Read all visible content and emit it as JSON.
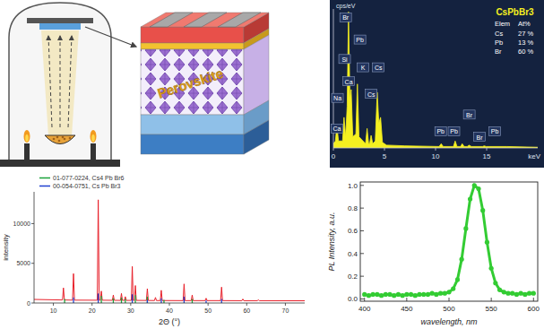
{
  "schematic": {
    "layer_label": "Perovskite"
  },
  "chart_data": [
    {
      "type": "area",
      "x_label": "keV",
      "y_label": "cps/eV",
      "x": [
        0,
        0.2,
        0.34,
        0.5,
        0.9,
        1.04,
        1.2,
        1.35,
        1.48,
        1.62,
        1.74,
        1.9,
        2.2,
        2.35,
        2.5,
        3.15,
        3.3,
        3.45,
        3.55,
        3.69,
        3.85,
        4.1,
        4.29,
        4.45,
        4.62,
        4.8,
        5.2,
        7,
        10.35,
        10.55,
        10.75,
        11.75,
        11.92,
        12.1,
        12.45,
        12.61,
        12.8,
        13.1,
        13.29,
        13.5,
        14.6,
        14.76,
        14.95,
        17,
        20
      ],
      "values": [
        3,
        5,
        16,
        5,
        5,
        22,
        8,
        30,
        98,
        35,
        42,
        8,
        10,
        46,
        8,
        3,
        14,
        3,
        3,
        9,
        3,
        5,
        40,
        18,
        22,
        4,
        2,
        1.5,
        1,
        3,
        1,
        1,
        5,
        1,
        1,
        3,
        1,
        1,
        2,
        1,
        1,
        1.5,
        1,
        1,
        0.5
      ],
      "color": "#f5f020",
      "xlim": [
        0,
        20
      ],
      "ylim": [
        0,
        100
      ],
      "xticks": [
        0,
        5,
        10,
        15
      ],
      "tick_labels": "x",
      "annotations": [
        {
          "text": "Br",
          "x": 1.2,
          "y": 94
        },
        {
          "text": "Pb",
          "x": 2.6,
          "y": 78
        },
        {
          "text": "Si",
          "x": 1.1,
          "y": 64
        },
        {
          "text": "K",
          "x": 2.9,
          "y": 58
        },
        {
          "text": "Cs",
          "x": 4.4,
          "y": 58
        },
        {
          "text": "Ca",
          "x": 1.5,
          "y": 48
        },
        {
          "text": "Na",
          "x": 0.4,
          "y": 36
        },
        {
          "text": "Cs",
          "x": 3.7,
          "y": 39
        },
        {
          "text": "Ca",
          "x": 0.35,
          "y": 14
        },
        {
          "text": "Pb",
          "x": 10.5,
          "y": 12
        },
        {
          "text": "Pb",
          "x": 11.8,
          "y": 12
        },
        {
          "text": "Br",
          "x": 13.3,
          "y": 24
        },
        {
          "text": "Br",
          "x": 14.3,
          "y": 8
        },
        {
          "text": "Pb",
          "x": 15.8,
          "y": 12
        }
      ],
      "inset": {
        "title": "CsPbBr3",
        "header": [
          "Elem",
          "At%"
        ],
        "rows": [
          [
            "Cs",
            "27 %"
          ],
          [
            "Pb",
            "13 %"
          ],
          [
            "Br",
            "60 %"
          ]
        ]
      }
    },
    {
      "type": "line",
      "x_label": "2Θ (°)",
      "y_label": "intensity",
      "series": [
        {
          "color": "#e8202a",
          "x": [
            5,
            12.35,
            12.6,
            12.85,
            14.95,
            15.2,
            15.45,
            21.35,
            21.6,
            21.85,
            22.15,
            22.4,
            22.65,
            25.25,
            25.5,
            25.75,
            27.35,
            27.6,
            27.85,
            28.35,
            28.6,
            28.85,
            30.15,
            30.4,
            30.65,
            30.95,
            31.2,
            31.45,
            34.05,
            34.3,
            34.55,
            36.15,
            36.4,
            36.65,
            37.65,
            37.9,
            38.15,
            43.55,
            43.8,
            44.05,
            45.65,
            45.9,
            46.15,
            49.25,
            49.5,
            49.75,
            53.25,
            53.5,
            53.75,
            58.75,
            59.0,
            59.25,
            62.75,
            63.0,
            63.25,
            75
          ],
          "values": [
            450,
            380,
            1900,
            380,
            360,
            3700,
            360,
            350,
            13000,
            350,
            350,
            1500,
            350,
            340,
            1000,
            340,
            330,
            1200,
            330,
            330,
            800,
            330,
            330,
            4600,
            330,
            330,
            2200,
            330,
            320,
            1800,
            320,
            310,
            700,
            310,
            310,
            1600,
            310,
            300,
            2400,
            300,
            300,
            1000,
            300,
            300,
            600,
            300,
            300,
            2000,
            300,
            290,
            500,
            290,
            290,
            400,
            290,
            280
          ]
        },
        {
          "name": "01-077-0224, Cs4 Pb Br6",
          "type": "stem",
          "color": "#1aa33a",
          "x": [
            12.9,
            22.4,
            25.5,
            27.6,
            28.6,
            31.2,
            34.3,
            38.6,
            45.9
          ],
          "values": [
            500,
            900,
            600,
            700,
            500,
            1000,
            800,
            400,
            500
          ]
        },
        {
          "name": "00-054-0751, Cs Pb Br3",
          "type": "stem",
          "color": "#2040d0",
          "x": [
            15.2,
            21.6,
            30.4,
            34.3,
            37.9,
            43.8,
            49.5,
            53.5
          ],
          "values": [
            700,
            1200,
            1100,
            400,
            600,
            800,
            300,
            500
          ]
        }
      ],
      "xlim": [
        5,
        75
      ],
      "ylim": [
        0,
        14000
      ],
      "xticks": [
        10,
        20,
        30,
        40,
        50,
        60,
        70
      ],
      "yticks": [
        0,
        5000,
        10000
      ],
      "legend": "upper left"
    },
    {
      "type": "scatter",
      "x_label": "wavelength, nm",
      "y_label": "PL Intensity, a.u.",
      "x": [
        400,
        405,
        410,
        415,
        420,
        425,
        430,
        435,
        440,
        445,
        450,
        455,
        460,
        465,
        470,
        475,
        480,
        485,
        490,
        495,
        500,
        505,
        510,
        515,
        520,
        525,
        530,
        535,
        540,
        545,
        550,
        555,
        560,
        565,
        570,
        575,
        580,
        585,
        590,
        595,
        600
      ],
      "values": [
        0.04,
        0.03,
        0.04,
        0.04,
        0.03,
        0.04,
        0.04,
        0.03,
        0.04,
        0.03,
        0.04,
        0.04,
        0.03,
        0.04,
        0.04,
        0.04,
        0.05,
        0.04,
        0.05,
        0.05,
        0.06,
        0.09,
        0.17,
        0.35,
        0.62,
        0.88,
        1.0,
        0.97,
        0.78,
        0.5,
        0.27,
        0.14,
        0.08,
        0.06,
        0.05,
        0.05,
        0.04,
        0.05,
        0.04,
        0.05,
        0.05
      ],
      "color": "#33cc33",
      "marker": "circle",
      "line_style": "solid",
      "xlim": [
        395,
        605
      ],
      "ylim": [
        -0.02,
        1.03
      ],
      "xticks": [
        400,
        450,
        500,
        550,
        600
      ],
      "yticks": [
        {
          "value": 0,
          "label": "0.0"
        },
        {
          "value": 0.2,
          "label": "0.2"
        },
        {
          "value": 0.4,
          "label": "0.4"
        },
        {
          "value": 0.6,
          "label": "0.6"
        },
        {
          "value": 0.8,
          "label": "0.8"
        },
        {
          "value": 1,
          "label": "1.0"
        }
      ]
    }
  ]
}
